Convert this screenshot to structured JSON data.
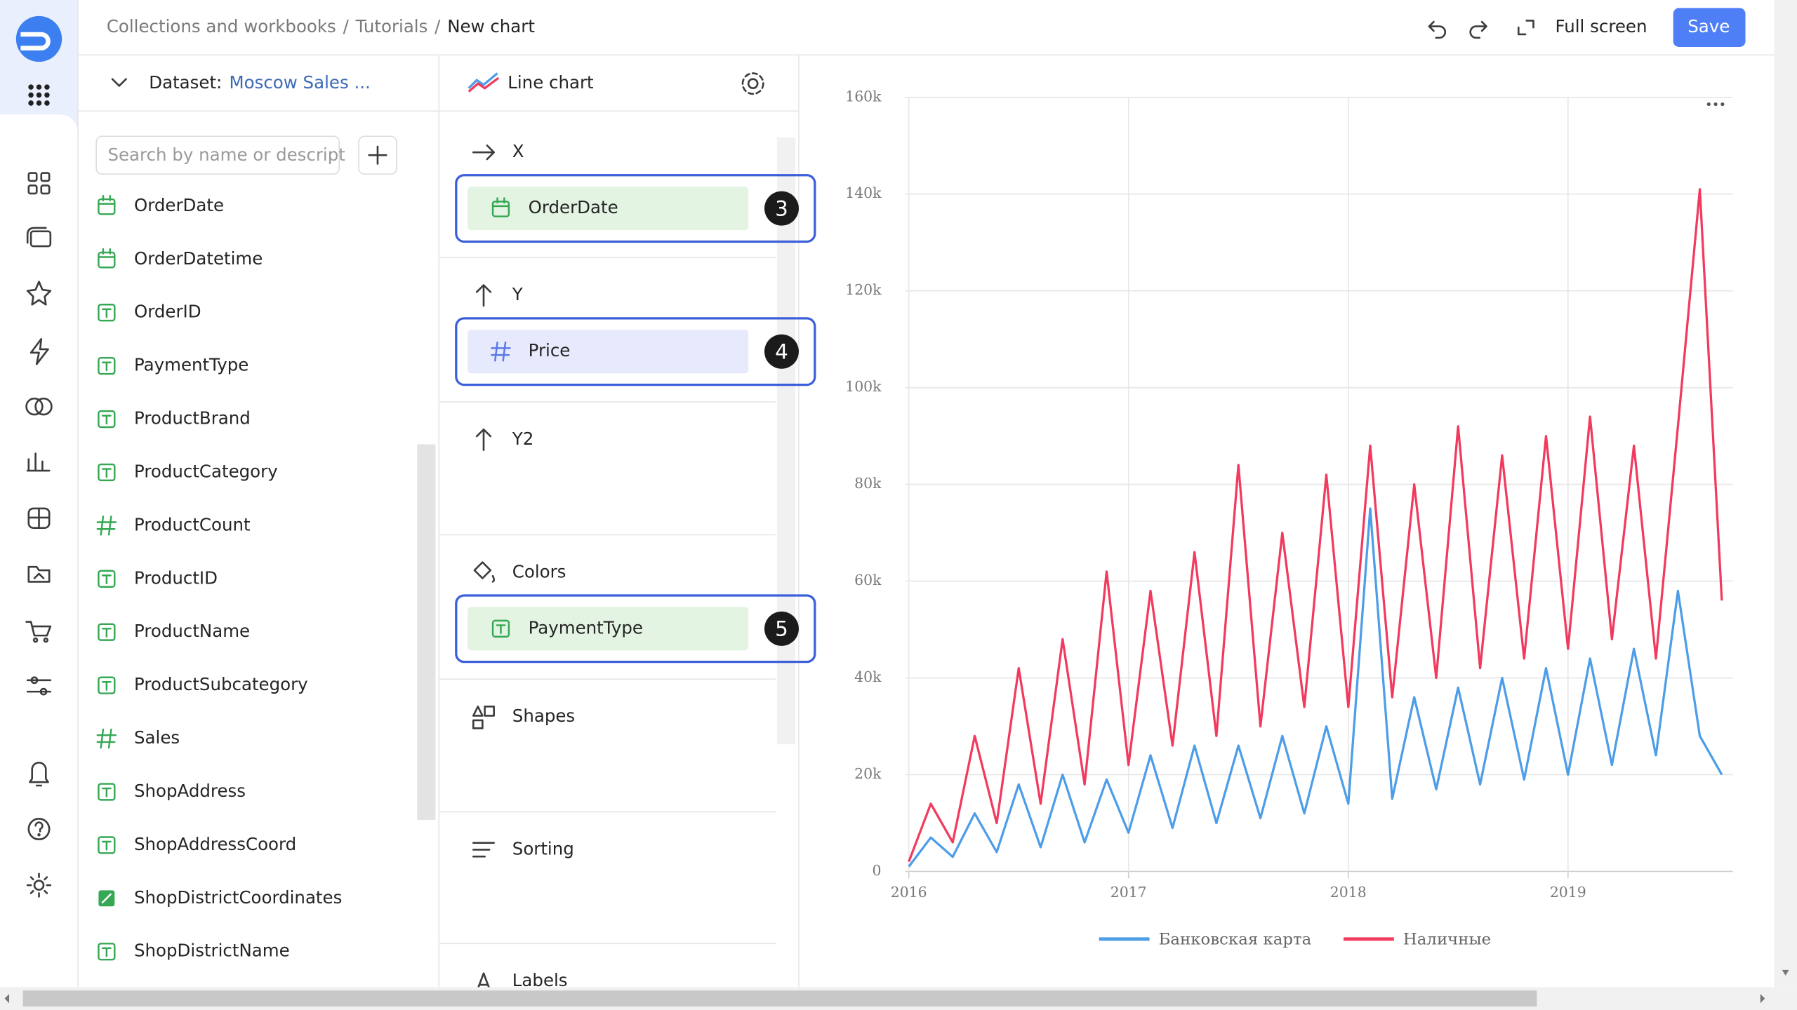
{
  "header": {
    "breadcrumbs": [
      "Collections and workbooks",
      "Tutorials",
      "New chart"
    ],
    "breadcrumb_separator": "/",
    "full_screen": "Full screen",
    "save": "Save"
  },
  "dataset": {
    "label": "Dataset:",
    "name": "Moscow Sales ...",
    "search_placeholder": "Search by name or descript",
    "fields": [
      {
        "name": "OrderDate",
        "kind": "date"
      },
      {
        "name": "OrderDatetime",
        "kind": "date"
      },
      {
        "name": "OrderID",
        "kind": "text"
      },
      {
        "name": "PaymentType",
        "kind": "text"
      },
      {
        "name": "ProductBrand",
        "kind": "text"
      },
      {
        "name": "ProductCategory",
        "kind": "text"
      },
      {
        "name": "ProductCount",
        "kind": "number"
      },
      {
        "name": "ProductID",
        "kind": "text"
      },
      {
        "name": "ProductName",
        "kind": "text"
      },
      {
        "name": "ProductSubcategory",
        "kind": "text"
      },
      {
        "name": "Sales",
        "kind": "number"
      },
      {
        "name": "ShopAddress",
        "kind": "text"
      },
      {
        "name": "ShopAddressCoord",
        "kind": "text"
      },
      {
        "name": "ShopDistrictCoordinates",
        "kind": "geo"
      },
      {
        "name": "ShopDistrictName",
        "kind": "text"
      }
    ]
  },
  "wizard": {
    "chart_type": "Line chart",
    "sections": [
      {
        "title": "X",
        "icon": "arrow-right",
        "field": "OrderDate",
        "kind": "date",
        "badge": "3"
      },
      {
        "title": "Y",
        "icon": "arrow-up",
        "field": "Price",
        "kind": "number",
        "badge": "4"
      },
      {
        "title": "Y2",
        "icon": "arrow-up"
      },
      {
        "title": "Colors",
        "icon": "bucket",
        "field": "PaymentType",
        "kind": "text",
        "badge": "5"
      },
      {
        "title": "Shapes",
        "icon": "shapes"
      },
      {
        "title": "Sorting",
        "icon": "sort"
      },
      {
        "title": "Labels",
        "icon": "label"
      }
    ]
  },
  "chart_data": {
    "type": "line",
    "x": [
      2016,
      2016.1,
      2016.2,
      2016.3,
      2016.4,
      2016.5,
      2016.6,
      2016.7,
      2016.8,
      2016.9,
      2017,
      2017.1,
      2017.2,
      2017.3,
      2017.4,
      2017.5,
      2017.6,
      2017.7,
      2017.8,
      2017.9,
      2018,
      2018.1,
      2018.2,
      2018.3,
      2018.4,
      2018.5,
      2018.6,
      2018.7,
      2018.8,
      2018.9,
      2019,
      2019.1,
      2019.2,
      2019.3,
      2019.4,
      2019.5,
      2019.6,
      2019.7
    ],
    "series": [
      {
        "name": "Банковская карта",
        "color": "#4d9de8",
        "values": [
          1000,
          7000,
          3000,
          12000,
          4000,
          18000,
          5000,
          20000,
          6000,
          19000,
          8000,
          24000,
          9000,
          26000,
          10000,
          26000,
          11000,
          28000,
          12000,
          30000,
          14000,
          75000,
          15000,
          36000,
          17000,
          38000,
          18000,
          40000,
          19000,
          42000,
          20000,
          44000,
          22000,
          46000,
          24000,
          58000,
          28000,
          20000
        ]
      },
      {
        "name": "Наличные",
        "color": "#f13a5e",
        "values": [
          2000,
          14000,
          6000,
          28000,
          10000,
          42000,
          14000,
          48000,
          18000,
          62000,
          22000,
          58000,
          26000,
          66000,
          28000,
          84000,
          30000,
          70000,
          34000,
          82000,
          34000,
          88000,
          36000,
          80000,
          40000,
          92000,
          42000,
          86000,
          44000,
          90000,
          46000,
          94000,
          48000,
          88000,
          44000,
          92000,
          141000,
          56000
        ]
      }
    ],
    "xlim": [
      2016,
      2019.75
    ],
    "xticks": [
      2016,
      2017,
      2018,
      2019
    ],
    "ylim": [
      0,
      160000
    ],
    "yticks": [
      0,
      {
        "value": 20000,
        "label": "20k"
      },
      {
        "value": 40000,
        "label": "40k"
      },
      {
        "value": 60000,
        "label": "60k"
      },
      {
        "value": 80000,
        "label": "80k"
      },
      {
        "value": 100000,
        "label": "100k"
      },
      {
        "value": 120000,
        "label": "120k"
      },
      {
        "value": 140000,
        "label": "140k"
      },
      {
        "value": 160000,
        "label": "160k"
      }
    ],
    "grid": true,
    "legend": "bottom"
  }
}
